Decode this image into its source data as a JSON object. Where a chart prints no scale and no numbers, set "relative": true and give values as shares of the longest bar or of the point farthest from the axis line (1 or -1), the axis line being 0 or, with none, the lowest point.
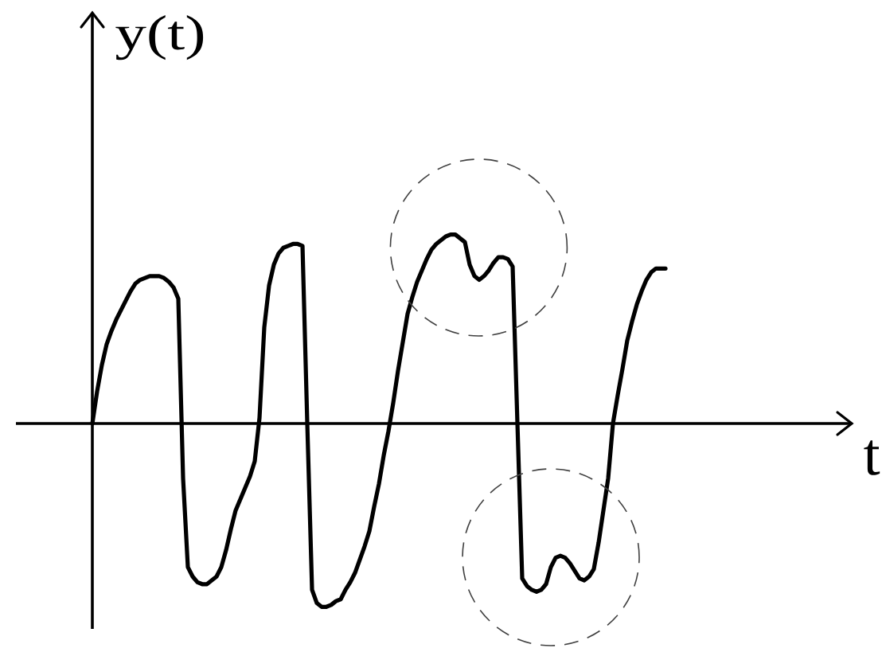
{
  "chart_data": {
    "type": "line",
    "xlabel": "t",
    "ylabel": "y(t)",
    "relative": true,
    "color": "#000000",
    "categories": [
      null,
      null,
      null,
      null,
      null,
      null,
      null,
      null,
      null,
      null,
      null,
      null,
      null,
      null,
      null,
      null,
      null,
      null,
      null,
      null,
      null,
      null,
      null,
      null,
      null,
      null,
      null,
      null,
      null,
      null,
      null,
      null,
      null,
      null,
      null,
      null,
      null,
      null,
      null,
      null,
      null,
      null,
      null,
      null,
      null,
      null,
      null,
      null,
      null,
      null,
      null,
      null,
      null,
      null,
      null,
      null,
      null,
      null,
      null,
      null,
      null,
      null,
      null,
      null,
      null,
      null,
      null,
      null,
      null,
      null,
      null,
      null,
      null,
      null,
      null,
      null,
      null,
      null,
      null,
      null,
      null,
      null,
      null,
      null,
      null,
      null,
      null,
      null,
      null,
      null,
      null,
      null,
      null,
      null,
      null,
      null,
      null,
      null,
      null,
      null,
      null,
      null,
      null,
      null,
      null,
      null,
      null,
      null,
      null,
      null,
      null,
      null,
      null,
      null,
      null,
      null,
      null,
      null,
      null,
      null,
      null
    ],
    "values": [
      0,
      0.17,
      0.31,
      0.42,
      0.49,
      0.55,
      0.6,
      0.65,
      0.7,
      0.74,
      0.76,
      0.77,
      0.78,
      0.78,
      0.78,
      0.77,
      0.75,
      0.72,
      0.66,
      -0.29,
      -0.76,
      -0.81,
      -0.84,
      -0.85,
      -0.85,
      -0.83,
      -0.81,
      -0.76,
      -0.67,
      -0.56,
      -0.46,
      -0.4,
      -0.34,
      -0.28,
      -0.2,
      0.03,
      0.51,
      0.73,
      0.84,
      0.9,
      0.93,
      0.94,
      0.95,
      0.95,
      0.94,
      0,
      -0.88,
      -0.95,
      -0.97,
      -0.97,
      -0.96,
      -0.94,
      -0.93,
      -0.88,
      -0.84,
      -0.79,
      -0.72,
      -0.65,
      -0.57,
      -0.44,
      -0.32,
      -0.17,
      -0.04,
      0.11,
      0.28,
      0.43,
      0.58,
      0.67,
      0.75,
      0.81,
      0.87,
      0.92,
      0.95,
      0.97,
      0.99,
      1,
      1,
      0.98,
      0.96,
      0.84,
      0.78,
      0.76,
      0.78,
      0.81,
      0.85,
      0.88,
      0.88,
      0.87,
      0.83,
      0,
      -0.82,
      -0.86,
      -0.88,
      -0.89,
      -0.88,
      -0.85,
      -0.76,
      -0.71,
      -0.7,
      -0.71,
      -0.74,
      -0.78,
      -0.82,
      -0.83,
      -0.81,
      -0.77,
      -0.63,
      -0.46,
      -0.29,
      0,
      0.15,
      0.29,
      0.44,
      0.54,
      0.63,
      0.7,
      0.76,
      0.8,
      0.82,
      0.82,
      0.82
    ]
  }
}
